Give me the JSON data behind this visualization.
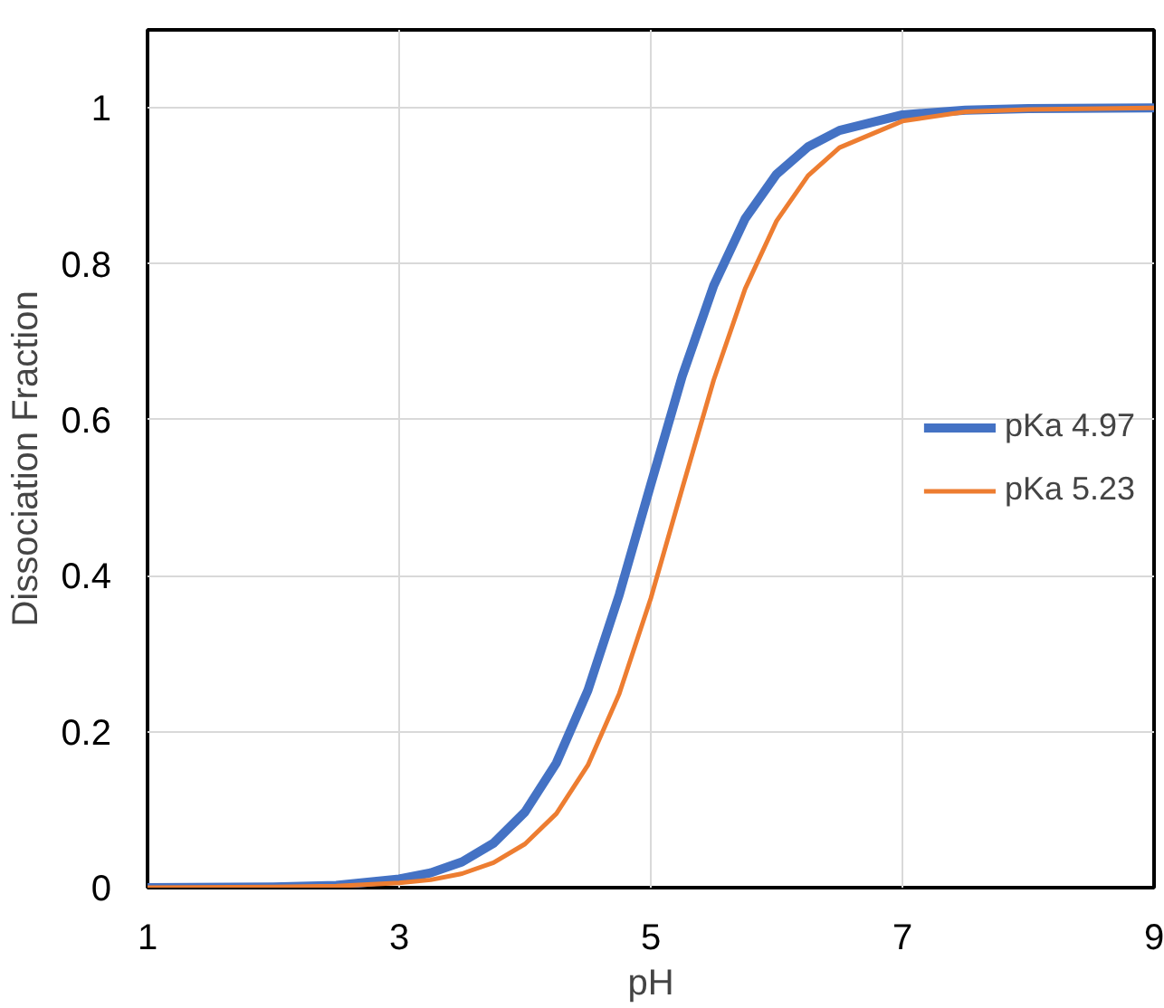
{
  "chart_data": {
    "type": "line",
    "xlabel": "pH",
    "ylabel": "Dissociation Fraction",
    "xlim": [
      1,
      9
    ],
    "xticks": [
      1,
      3,
      5,
      7,
      9
    ],
    "ylim": [
      0,
      1.1
    ],
    "yticks": [
      0,
      0.2,
      0.4,
      0.6,
      0.8,
      1
    ],
    "grid": true,
    "legend": "right",
    "marker": "none",
    "line_style": "solid",
    "series": [
      {
        "name": "pKa 4.97",
        "color": "#4472c4",
        "x": [
          1,
          2,
          2.5,
          3,
          3.25,
          3.5,
          3.75,
          4,
          4.25,
          4.5,
          4.75,
          5,
          5.25,
          5.5,
          5.75,
          6,
          6.25,
          6.5,
          7,
          7.5,
          8,
          9
        ],
        "values": [
          0,
          0.001,
          0.003,
          0.011,
          0.019,
          0.033,
          0.057,
          0.097,
          0.16,
          0.253,
          0.376,
          0.517,
          0.656,
          0.772,
          0.858,
          0.915,
          0.95,
          0.971,
          0.991,
          0.997,
          0.999,
          1
        ]
      },
      {
        "name": "pKa 5.23",
        "color": "#ed7d31",
        "x": [
          1,
          2,
          2.5,
          3,
          3.25,
          3.5,
          3.75,
          4,
          4.25,
          4.5,
          4.75,
          5,
          5.25,
          5.5,
          5.75,
          6,
          6.25,
          6.5,
          7,
          7.5,
          8,
          9
        ],
        "values": [
          0,
          0.001,
          0.002,
          0.006,
          0.01,
          0.018,
          0.032,
          0.056,
          0.095,
          0.157,
          0.249,
          0.371,
          0.512,
          0.651,
          0.768,
          0.855,
          0.913,
          0.949,
          0.983,
          0.995,
          0.998,
          1
        ]
      }
    ]
  }
}
